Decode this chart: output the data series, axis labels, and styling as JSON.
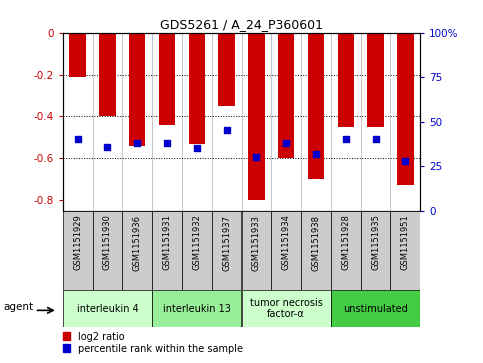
{
  "title": "GDS5261 / A_24_P360601",
  "samples": [
    "GSM1151929",
    "GSM1151930",
    "GSM1151936",
    "GSM1151931",
    "GSM1151932",
    "GSM1151937",
    "GSM1151933",
    "GSM1151934",
    "GSM1151938",
    "GSM1151928",
    "GSM1151935",
    "GSM1151951"
  ],
  "log2_ratio": [
    -0.21,
    -0.4,
    -0.54,
    -0.44,
    -0.53,
    -0.35,
    -0.8,
    -0.6,
    -0.7,
    -0.45,
    -0.45,
    -0.73
  ],
  "percentile": [
    40,
    36,
    38,
    38,
    35,
    45,
    30,
    38,
    32,
    40,
    40,
    28
  ],
  "groups": [
    {
      "label": "interleukin 4",
      "start": 0,
      "end": 3,
      "color": "#ccffcc"
    },
    {
      "label": "interleukin 13",
      "start": 3,
      "end": 6,
      "color": "#99ee99"
    },
    {
      "label": "tumor necrosis\nfactor-α",
      "start": 6,
      "end": 9,
      "color": "#ccffcc"
    },
    {
      "label": "unstimulated",
      "start": 9,
      "end": 12,
      "color": "#44cc44"
    }
  ],
  "ylim_left": [
    -0.85,
    0.0
  ],
  "ylim_right": [
    0,
    100
  ],
  "bar_color": "#cc0000",
  "dot_color": "#0000cc",
  "yticks_left": [
    0,
    -0.2,
    -0.4,
    -0.6,
    -0.8
  ],
  "yticks_right": [
    0,
    25,
    50,
    75,
    100
  ],
  "bar_width": 0.55,
  "sample_bg": "#cccccc",
  "group_colors": [
    "#ccffcc",
    "#99ee99",
    "#ccffcc",
    "#44cc44"
  ]
}
